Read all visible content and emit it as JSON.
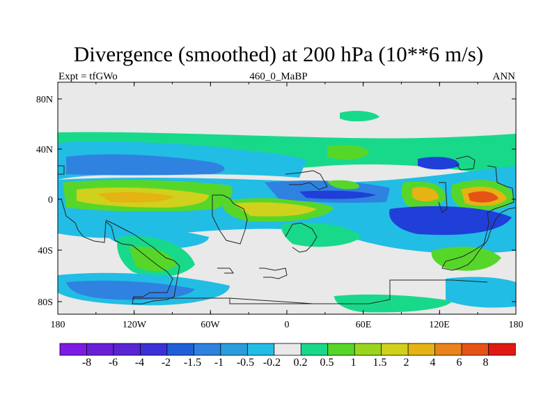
{
  "title": "Divergence (smoothed) at 200 hPa (10**6 m/s)",
  "subtitle_left": "Expt = tfGWo",
  "subtitle_center": "460_0_MaBP",
  "subtitle_right": "ANN",
  "lat_ticks": [
    "80N",
    "40N",
    "0",
    "40S",
    "80S"
  ],
  "lon_ticks": [
    "180",
    "120W",
    "60W",
    "0",
    "60E",
    "120E",
    "180"
  ],
  "colorbar": {
    "labels": [
      "-8",
      "-6",
      "-4",
      "-2",
      "-1.5",
      "-1",
      "-0.5",
      "-0.2",
      "0.2",
      "0.5",
      "1",
      "1.5",
      "2",
      "4",
      "6",
      "8"
    ],
    "colors": [
      "#7f19e6",
      "#6a1fd6",
      "#5a25d4",
      "#3a32d8",
      "#1f5fd8",
      "#2f82e0",
      "#2a9edc",
      "#22bde4",
      "#e9e9e9",
      "#18d98a",
      "#57d62a",
      "#9ad520",
      "#cfd11c",
      "#e5b313",
      "#e8841a",
      "#e65317",
      "#e01a12"
    ]
  },
  "map_colors": {
    "background": "#e9e9e9",
    "strong_negative": "#1f3fd8",
    "negative": "#2f82e0",
    "weak_negative": "#22bde4",
    "weak_positive": "#18d98a",
    "positive": "#57d62a",
    "moderate_positive": "#cfd11c",
    "strong_positive": "#e5b313",
    "max_positive": "#e65317"
  }
}
